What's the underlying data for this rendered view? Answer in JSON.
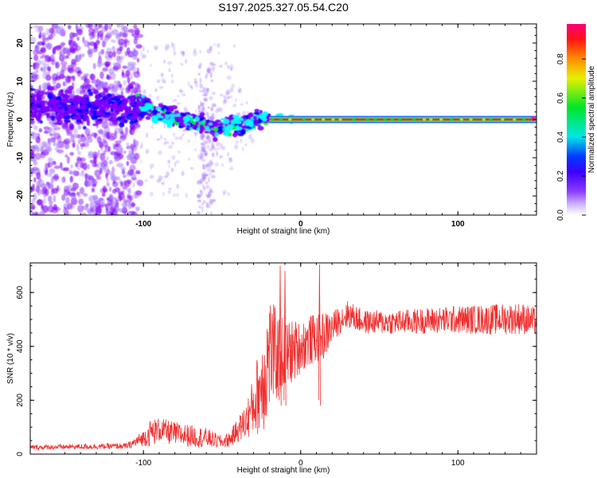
{
  "title": "S197.2025.327.05.54.C20",
  "chart_data": [
    {
      "type": "heatmap",
      "name": "spectrogram",
      "xlabel": "Height of straight line (km)",
      "ylabel": "Frequency (Hz)",
      "xlim": [
        -172,
        150
      ],
      "ylim": [
        -25,
        25
      ],
      "xticks": [
        -100,
        0,
        100
      ],
      "yticks": [
        -20,
        -10,
        0,
        10,
        20
      ],
      "carrier": {
        "x_start": -20,
        "x_end": 150,
        "frequency": 0
      },
      "colorbar": {
        "label": "Normalized spectral amplitude",
        "range": [
          0,
          1
        ],
        "ticks": [
          0.0,
          0.2,
          0.4,
          0.6,
          0.8
        ],
        "tick_labels": [
          "0.0",
          "0.2",
          "0.4",
          "0.6",
          "0.8"
        ],
        "colors": [
          "#ffffff",
          "#ab82ff",
          "#8000ff",
          "#0000ff",
          "#00ffff",
          "#00ff00",
          "#ffff00",
          "#ff8000",
          "#ff0000",
          "#ff0080"
        ]
      }
    },
    {
      "type": "line",
      "name": "snr",
      "xlabel": "Height of straight line (km)",
      "ylabel": "SNR (10 * v/v)",
      "xlim": [
        -172,
        150
      ],
      "ylim": [
        0,
        710
      ],
      "xticks": [
        -100,
        0,
        100
      ],
      "yticks": [
        0,
        200,
        400,
        600
      ],
      "color": "#f03030",
      "profile": {
        "x": [
          -172,
          -110,
          -100,
          -95,
          -90,
          -80,
          -60,
          -50,
          -45,
          -40,
          -35,
          -30,
          -25,
          -22,
          -20,
          -15,
          -10,
          -5,
          0,
          5,
          10,
          15,
          20,
          25,
          30,
          40,
          60,
          80,
          100,
          120,
          140,
          150
        ],
        "mean": [
          25,
          30,
          60,
          80,
          90,
          75,
          60,
          45,
          55,
          90,
          120,
          180,
          260,
          320,
          380,
          360,
          370,
          380,
          400,
          420,
          430,
          440,
          470,
          500,
          520,
          490,
          490,
          495,
          500,
          500,
          505,
          490
        ],
        "spread": [
          12,
          15,
          40,
          70,
          60,
          60,
          50,
          30,
          40,
          60,
          90,
          150,
          250,
          300,
          300,
          220,
          180,
          160,
          130,
          130,
          120,
          120,
          80,
          70,
          70,
          60,
          60,
          65,
          70,
          75,
          80,
          70
        ]
      },
      "spikes": [
        {
          "x": -13,
          "y": 700
        },
        {
          "x": -10,
          "y": 680
        },
        {
          "x": 12,
          "y": 705
        }
      ]
    }
  ]
}
